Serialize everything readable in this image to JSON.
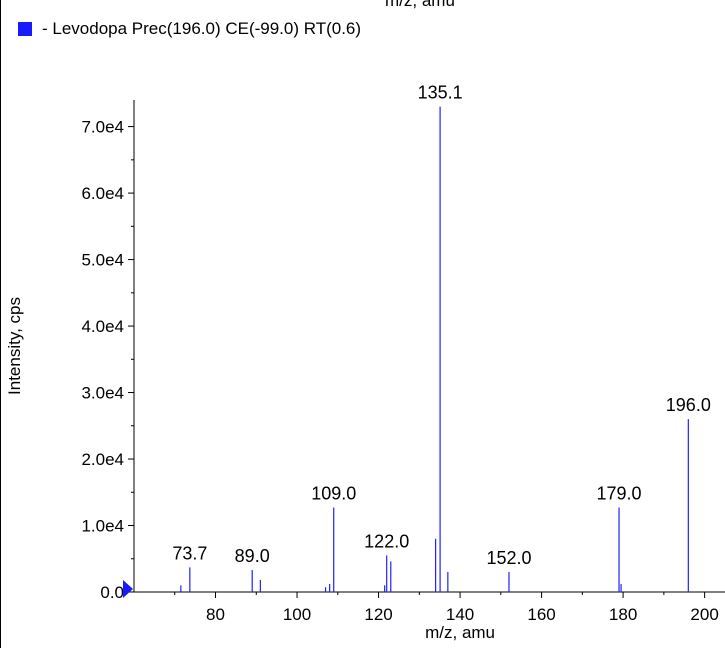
{
  "header": {
    "top_axis_label": "m/z, amu"
  },
  "legend": {
    "label": "- Levodopa Prec(196.0) CE(-99.0) RT(0.6)",
    "swatch_color": "#1a1aff"
  },
  "colors": {
    "peak": "#2020ff",
    "axis": "#000000",
    "marker": "#1a1aff"
  },
  "chart_data": {
    "type": "bar",
    "xlabel": "m/z, amu",
    "ylabel": "Intensity, cps",
    "xlim": [
      60,
      205
    ],
    "ylim": [
      0,
      74000
    ],
    "x_ticks": [
      80,
      100,
      120,
      140,
      160,
      180,
      200
    ],
    "y_ticks": [
      0,
      10000,
      20000,
      30000,
      40000,
      50000,
      60000,
      70000
    ],
    "y_tick_labels": [
      "0.0",
      "1.0e4",
      "2.0e4",
      "3.0e4",
      "4.0e4",
      "5.0e4",
      "6.0e4",
      "7.0e4"
    ],
    "series": [
      {
        "peaks": [
          {
            "x": 71.5,
            "y": 1000
          },
          {
            "x": 73.7,
            "y": 3700,
            "label": "73.7"
          },
          {
            "x": 89.0,
            "y": 3300,
            "label": "89.0"
          },
          {
            "x": 91.0,
            "y": 1800
          },
          {
            "x": 107.0,
            "y": 700
          },
          {
            "x": 108.0,
            "y": 1200
          },
          {
            "x": 109.0,
            "y": 12700,
            "label": "109.0"
          },
          {
            "x": 121.5,
            "y": 1000
          },
          {
            "x": 122.0,
            "y": 5500,
            "label": "122.0"
          },
          {
            "x": 123.0,
            "y": 4600
          },
          {
            "x": 134.0,
            "y": 8000
          },
          {
            "x": 135.1,
            "y": 73000,
            "label": "135.1"
          },
          {
            "x": 137.0,
            "y": 3000
          },
          {
            "x": 152.0,
            "y": 3000,
            "label": "152.0"
          },
          {
            "x": 179.0,
            "y": 12700,
            "label": "179.0"
          },
          {
            "x": 179.5,
            "y": 1200
          },
          {
            "x": 196.0,
            "y": 26000,
            "label": "196.0"
          }
        ]
      }
    ]
  }
}
